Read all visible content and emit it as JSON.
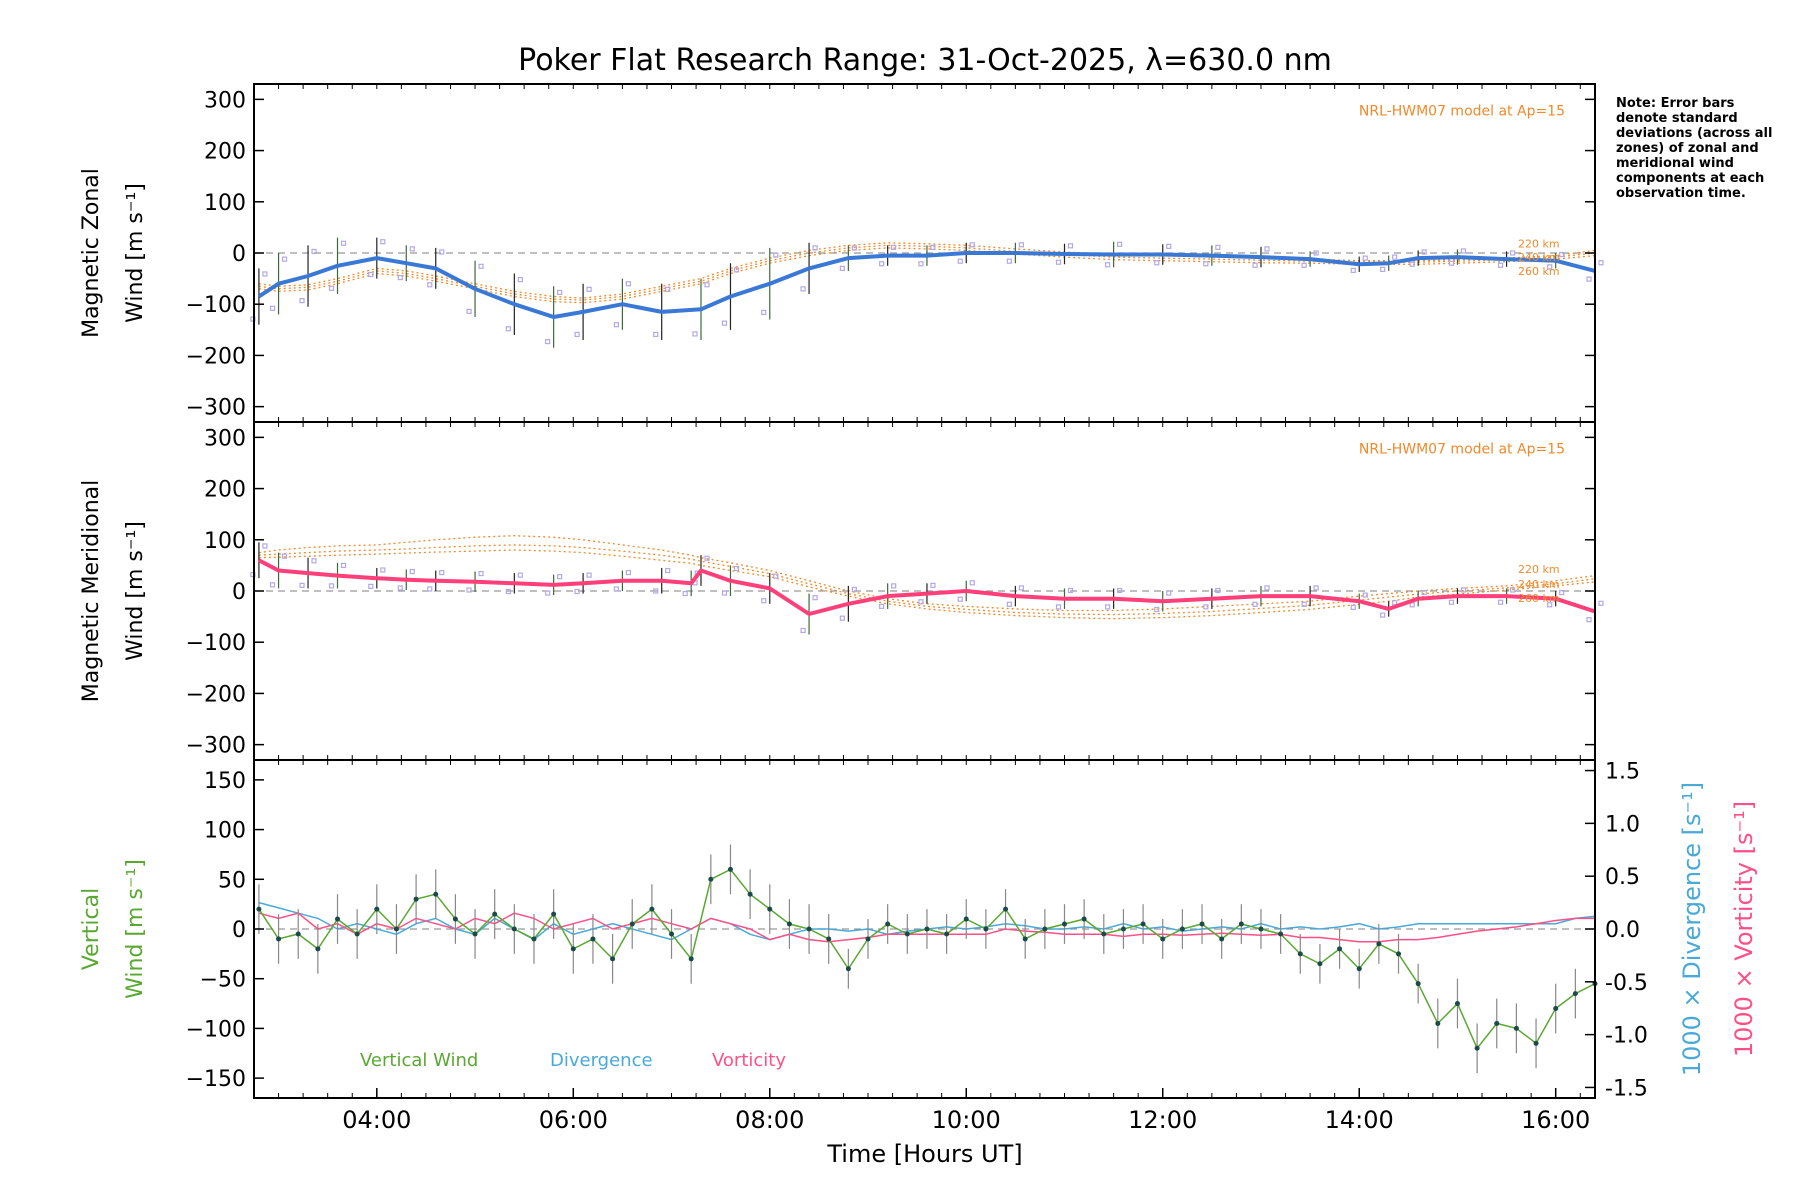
{
  "title": "Poker Flat Research Range: 31-Oct-2025, λ=630.0 nm",
  "note": "Note: Error bars denote standard deviations (across all zones) of zonal and meridional wind components at each observation time.",
  "xlabel": "Time [Hours UT]",
  "colors": {
    "zonal": "#3a78d6",
    "meridional": "#ff3f7a",
    "vertical": "#5aa832",
    "divergence": "#49a9d8",
    "vorticity": "#ff4f86",
    "model": "#f08a2c",
    "zone": "#b3a8e6",
    "points": "#1a4a4a"
  },
  "chart_data": [
    {
      "type": "line",
      "panel": "zonal",
      "ylabel_line1": "Magnetic Zonal",
      "ylabel_line2": "Wind [m s⁻¹]",
      "model_label": "NRL-HWM07 model at Ap=15",
      "model_altitudes": [
        "220 km",
        "240 km",
        "260 km"
      ],
      "xlim": [
        2.75,
        16.4
      ],
      "ylim": [
        -330,
        330
      ],
      "yticks": [
        -300,
        -200,
        -100,
        0,
        100,
        200,
        300
      ],
      "x": [
        2.8,
        3.0,
        3.3,
        3.6,
        4.0,
        4.3,
        4.6,
        5.0,
        5.4,
        5.8,
        6.1,
        6.5,
        6.9,
        7.3,
        7.6,
        8.0,
        8.4,
        8.8,
        9.2,
        9.6,
        10.0,
        10.5,
        11.0,
        11.5,
        12.0,
        12.5,
        13.0,
        13.5,
        14.0,
        14.3,
        14.6,
        15.0,
        15.5,
        16.0,
        16.4
      ],
      "series": [
        {
          "name": "Zonal wind",
          "values": [
            -85,
            -60,
            -45,
            -25,
            -10,
            -20,
            -30,
            -70,
            -100,
            -125,
            -115,
            -100,
            -115,
            -110,
            -85,
            -60,
            -30,
            -10,
            -5,
            -5,
            0,
            0,
            -2,
            -3,
            -3,
            -5,
            -8,
            -12,
            -22,
            -20,
            -10,
            -8,
            -12,
            -15,
            -35
          ]
        },
        {
          "name": "Zonal error",
          "values": [
            55,
            60,
            60,
            55,
            40,
            35,
            40,
            55,
            60,
            60,
            55,
            50,
            55,
            60,
            65,
            70,
            50,
            25,
            20,
            20,
            20,
            20,
            20,
            25,
            20,
            20,
            20,
            15,
            15,
            15,
            15,
            15,
            15,
            15,
            20
          ]
        }
      ],
      "models": [
        {
          "name": "220 km",
          "values": [
            -60,
            -65,
            -62,
            -50,
            -30,
            -35,
            -45,
            -60,
            -75,
            -85,
            -88,
            -80,
            -65,
            -50,
            -30,
            -10,
            5,
            15,
            20,
            18,
            15,
            8,
            2,
            -3,
            -5,
            -8,
            -10,
            -12,
            -15,
            -15,
            -15,
            -13,
            -10,
            -5,
            5
          ]
        },
        {
          "name": "240 km",
          "values": [
            -65,
            -70,
            -67,
            -55,
            -35,
            -40,
            -50,
            -65,
            -80,
            -90,
            -92,
            -85,
            -70,
            -55,
            -35,
            -15,
            0,
            10,
            15,
            13,
            10,
            3,
            -3,
            -8,
            -10,
            -12,
            -14,
            -16,
            -18,
            -18,
            -18,
            -16,
            -13,
            -8,
            0
          ]
        },
        {
          "name": "260 km",
          "values": [
            -70,
            -75,
            -72,
            -60,
            -40,
            -45,
            -55,
            -70,
            -85,
            -95,
            -97,
            -90,
            -75,
            -60,
            -40,
            -20,
            -5,
            5,
            10,
            8,
            5,
            -2,
            -8,
            -13,
            -15,
            -17,
            -19,
            -20,
            -22,
            -22,
            -22,
            -20,
            -17,
            -12,
            -5
          ]
        }
      ]
    },
    {
      "type": "line",
      "panel": "meridional",
      "ylabel_line1": "Magnetic Meridional",
      "ylabel_line2": "Wind [m s⁻¹]",
      "model_label": "NRL-HWM07 model at Ap=15",
      "model_altitudes": [
        "220 km",
        "240 km",
        "260 km"
      ],
      "xlim": [
        2.75,
        16.4
      ],
      "ylim": [
        -330,
        330
      ],
      "yticks": [
        -300,
        -200,
        -100,
        0,
        100,
        200,
        300
      ],
      "x": [
        2.8,
        3.0,
        3.3,
        3.6,
        4.0,
        4.3,
        4.6,
        5.0,
        5.4,
        5.8,
        6.1,
        6.5,
        6.9,
        7.2,
        7.3,
        7.6,
        8.0,
        8.4,
        8.8,
        9.2,
        9.6,
        10.0,
        10.5,
        11.0,
        11.5,
        12.0,
        12.5,
        13.0,
        13.5,
        14.0,
        14.3,
        14.6,
        15.0,
        15.5,
        16.0,
        16.4
      ],
      "series": [
        {
          "name": "Meridional wind",
          "values": [
            60,
            40,
            35,
            30,
            25,
            22,
            20,
            18,
            15,
            12,
            15,
            20,
            20,
            15,
            40,
            20,
            5,
            -45,
            -25,
            -10,
            -5,
            0,
            -10,
            -15,
            -15,
            -20,
            -15,
            -10,
            -10,
            -20,
            -35,
            -15,
            -10,
            -10,
            -15,
            -40
          ]
        },
        {
          "name": "Meridional error",
          "values": [
            35,
            35,
            30,
            25,
            20,
            20,
            20,
            20,
            20,
            20,
            20,
            20,
            25,
            25,
            30,
            30,
            30,
            40,
            35,
            25,
            20,
            20,
            20,
            20,
            20,
            20,
            20,
            20,
            20,
            15,
            15,
            15,
            15,
            15,
            15,
            20
          ]
        }
      ],
      "models": [
        {
          "name": "220 km",
          "values": [
            75,
            80,
            85,
            88,
            90,
            95,
            100,
            105,
            108,
            105,
            100,
            90,
            80,
            70,
            65,
            55,
            40,
            20,
            0,
            -15,
            -25,
            -30,
            -35,
            -38,
            -38,
            -35,
            -30,
            -25,
            -20,
            -10,
            -5,
            0,
            5,
            10,
            20,
            30
          ]
        },
        {
          "name": "240 km",
          "values": [
            70,
            72,
            75,
            78,
            80,
            82,
            85,
            88,
            90,
            88,
            85,
            78,
            70,
            62,
            58,
            48,
            34,
            14,
            -5,
            -20,
            -30,
            -36,
            -42,
            -45,
            -46,
            -44,
            -40,
            -34,
            -28,
            -18,
            -12,
            -6,
            0,
            6,
            14,
            24
          ]
        },
        {
          "name": "260 km",
          "values": [
            65,
            66,
            68,
            70,
            72,
            74,
            76,
            78,
            80,
            78,
            75,
            68,
            60,
            54,
            50,
            40,
            28,
            8,
            -10,
            -25,
            -35,
            -42,
            -48,
            -52,
            -54,
            -52,
            -48,
            -42,
            -36,
            -26,
            -20,
            -12,
            -6,
            2,
            10,
            18
          ]
        }
      ]
    },
    {
      "type": "line",
      "panel": "vertical",
      "ylabel_line1": "Vertical",
      "ylabel_line2": "Wind [m s⁻¹]",
      "y2label_div": "1000 × Divergence [s⁻¹]",
      "y2label_vort": "1000 × Vorticity [s⁻¹]",
      "legend": [
        "Vertical Wind",
        "Divergence",
        "Vorticity"
      ],
      "xlim": [
        2.75,
        16.4
      ],
      "ylim": [
        -170,
        170
      ],
      "yticks": [
        -150,
        -100,
        -50,
        0,
        50,
        100,
        150
      ],
      "y2lim": [
        -1.6,
        1.6
      ],
      "y2ticks": [
        -1.5,
        -1.0,
        -0.5,
        0.0,
        0.5,
        1.0,
        1.5
      ],
      "y2ticklabels": [
        "-1.5",
        "-1.0",
        "-0.5",
        "0.0",
        "0.5",
        "1.0",
        "1.5"
      ],
      "xticks": [
        4,
        6,
        8,
        10,
        12,
        14,
        16
      ],
      "xticklabels": [
        "04:00",
        "06:00",
        "08:00",
        "10:00",
        "12:00",
        "14:00",
        "16:00"
      ],
      "x": [
        2.8,
        3.0,
        3.2,
        3.4,
        3.6,
        3.8,
        4.0,
        4.2,
        4.4,
        4.6,
        4.8,
        5.0,
        5.2,
        5.4,
        5.6,
        5.8,
        6.0,
        6.2,
        6.4,
        6.6,
        6.8,
        7.0,
        7.2,
        7.4,
        7.6,
        7.8,
        8.0,
        8.2,
        8.4,
        8.6,
        8.8,
        9.0,
        9.2,
        9.4,
        9.6,
        9.8,
        10.0,
        10.2,
        10.4,
        10.6,
        10.8,
        11.0,
        11.2,
        11.4,
        11.6,
        11.8,
        12.0,
        12.2,
        12.4,
        12.6,
        12.8,
        13.0,
        13.2,
        13.4,
        13.6,
        13.8,
        14.0,
        14.2,
        14.4,
        14.6,
        14.8,
        15.0,
        15.2,
        15.4,
        15.6,
        15.8,
        16.0,
        16.2,
        16.4
      ],
      "series": [
        {
          "name": "Vertical Wind",
          "values": [
            20,
            -10,
            -5,
            -20,
            10,
            -5,
            20,
            0,
            30,
            35,
            10,
            -5,
            15,
            0,
            -10,
            15,
            -20,
            -10,
            -30,
            5,
            20,
            -5,
            -30,
            50,
            60,
            35,
            20,
            5,
            0,
            -10,
            -40,
            -10,
            5,
            -5,
            0,
            -5,
            10,
            0,
            20,
            -10,
            0,
            5,
            10,
            -5,
            0,
            5,
            -10,
            0,
            5,
            -10,
            5,
            0,
            -5,
            -25,
            -35,
            -20,
            -40,
            -15,
            -25,
            -55,
            -95,
            -75,
            -120,
            -95,
            -100,
            -115,
            -80,
            -65,
            -55
          ]
        },
        {
          "name": "Vertical Wind error",
          "values": [
            25,
            25,
            25,
            25,
            25,
            25,
            25,
            25,
            25,
            25,
            25,
            25,
            25,
            25,
            25,
            25,
            25,
            25,
            25,
            25,
            25,
            25,
            25,
            25,
            25,
            25,
            25,
            25,
            25,
            25,
            20,
            20,
            20,
            20,
            20,
            20,
            20,
            20,
            20,
            20,
            20,
            20,
            20,
            20,
            20,
            20,
            20,
            20,
            20,
            20,
            20,
            20,
            20,
            20,
            20,
            20,
            20,
            20,
            20,
            20,
            25,
            25,
            25,
            25,
            25,
            25,
            25,
            25,
            25
          ]
        },
        {
          "name": "Divergence",
          "values": [
            0.25,
            0.2,
            0.15,
            0.1,
            0.0,
            0.05,
            0.0,
            -0.05,
            0.05,
            0.1,
            0.0,
            -0.05,
            0.1,
            0.0,
            -0.1,
            0.05,
            -0.05,
            0.0,
            0.05,
            0.0,
            -0.05,
            -0.1,
            0.0,
            0.1,
            0.05,
            -0.05,
            -0.1,
            -0.05,
            0.0,
            0.0,
            -0.02,
            0.0,
            -0.05,
            -0.02,
            0.0,
            0.02,
            0.0,
            0.02,
            0.05,
            0.03,
            0.0,
            0.0,
            0.02,
            0.0,
            0.05,
            0.0,
            0.02,
            -0.02,
            0.0,
            0.02,
            0.0,
            0.05,
            0.0,
            0.02,
            0.0,
            0.02,
            0.05,
            0.0,
            0.02,
            0.05,
            0.05,
            0.05,
            0.05,
            0.05,
            0.05,
            0.05,
            0.05,
            0.1,
            0.12
          ]
        },
        {
          "name": "Vorticity",
          "values": [
            0.15,
            0.1,
            0.15,
            0.0,
            0.05,
            -0.05,
            0.05,
            0.0,
            0.1,
            0.05,
            0.0,
            0.1,
            0.05,
            0.15,
            0.1,
            0.0,
            0.05,
            0.1,
            0.0,
            0.05,
            0.1,
            0.05,
            0.0,
            0.1,
            0.05,
            0.0,
            -0.1,
            -0.05,
            -0.1,
            -0.12,
            -0.1,
            -0.08,
            -0.05,
            -0.05,
            -0.05,
            -0.05,
            -0.05,
            -0.05,
            0.0,
            -0.02,
            -0.03,
            -0.05,
            -0.05,
            -0.05,
            -0.07,
            -0.05,
            -0.05,
            -0.06,
            -0.05,
            -0.04,
            -0.05,
            -0.06,
            -0.05,
            -0.08,
            -0.08,
            -0.1,
            -0.12,
            -0.12,
            -0.1,
            -0.1,
            -0.08,
            -0.05,
            -0.02,
            0.0,
            0.02,
            0.05,
            0.08,
            0.1,
            0.1
          ]
        }
      ]
    }
  ]
}
